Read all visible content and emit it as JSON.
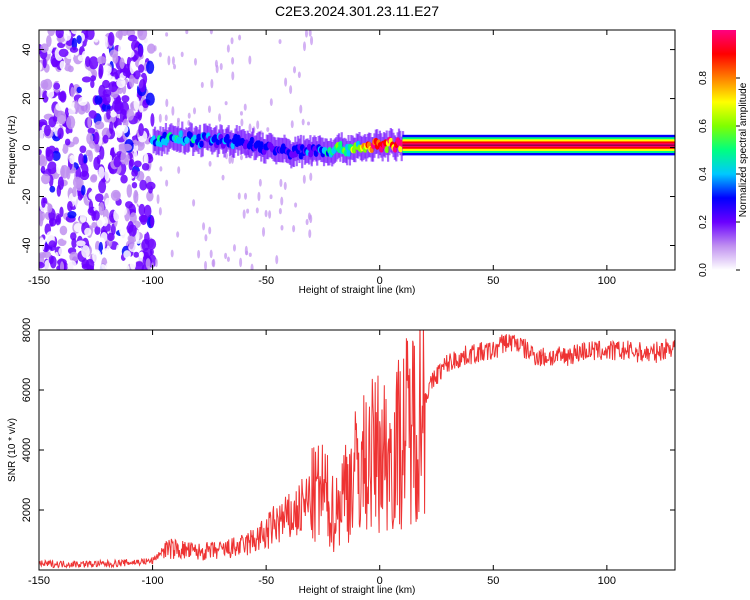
{
  "figure_title": "C2E3.2024.301.23.11.E27",
  "chart_data": [
    {
      "type": "heatmap",
      "xlabel": "Height of straight line (km)",
      "ylabel": "Frequency (Hz)",
      "xlim": [
        -150,
        130
      ],
      "ylim": [
        -50,
        48
      ],
      "xticks": [
        -150,
        -100,
        -50,
        0,
        50,
        100
      ],
      "yticks": [
        -40,
        -20,
        0,
        20,
        40
      ],
      "grid": false,
      "colorbar": {
        "label": "Normalized spectral amplitude",
        "range": [
          0,
          1
        ],
        "ticks": [
          0,
          0.2,
          0.4,
          0.6,
          0.8
        ],
        "tick_labels": [
          "0.0",
          "0.2",
          "0.4",
          "0.6",
          "0.8"
        ],
        "colors": [
          "#ffffff",
          "#c090f0",
          "#6a00ff",
          "#0000ff",
          "#00c8ff",
          "#00ff80",
          "#80ff00",
          "#ffff00",
          "#ff8000",
          "#ff0000",
          "#ff0080"
        ]
      },
      "ridge": {
        "x": [
          -100,
          -90,
          -80,
          -70,
          -60,
          -50,
          -40,
          -30,
          -20,
          -10,
          0,
          10,
          20,
          50,
          100,
          130
        ],
        "frequency": [
          3,
          4,
          3,
          3,
          2,
          0,
          -2,
          -1,
          -1,
          0,
          1,
          1,
          1,
          1,
          1,
          1
        ],
        "amplitude": [
          0.35,
          0.4,
          0.35,
          0.3,
          0.3,
          0.25,
          0.25,
          0.3,
          0.45,
          0.6,
          0.85,
          0.95,
          1,
          1,
          1,
          1
        ]
      },
      "noise_region": {
        "x": [
          -150,
          -100
        ],
        "frequency": [
          -50,
          48
        ],
        "amplitude": 0.2
      }
    },
    {
      "type": "line",
      "xlabel": "Height of straight line (km)",
      "ylabel": "SNR (10 * v/v)",
      "xlim": [
        -150,
        130
      ],
      "ylim": [
        0,
        8000
      ],
      "xticks": [
        -150,
        -100,
        -50,
        0,
        50,
        100
      ],
      "yticks": [
        2000,
        4000,
        6000,
        8000
      ],
      "grid": false,
      "series": [
        {
          "color": "#ee3333",
          "x": [
            -150,
            -140,
            -130,
            -120,
            -110,
            -100,
            -95,
            -90,
            -80,
            -70,
            -60,
            -55,
            -50,
            -45,
            -40,
            -35,
            -30,
            -25,
            -20,
            -15,
            -10,
            -5,
            0,
            5,
            10,
            15,
            20,
            25,
            30,
            40,
            50,
            55,
            60,
            65,
            70,
            80,
            90,
            100,
            110,
            120,
            130
          ],
          "values": [
            200,
            200,
            200,
            200,
            250,
            300,
            700,
            700,
            600,
            650,
            800,
            1000,
            1200,
            1600,
            1700,
            2000,
            2400,
            2600,
            1800,
            2800,
            3300,
            3700,
            4000,
            3800,
            4500,
            5000,
            5800,
            6500,
            6900,
            7200,
            7300,
            7600,
            7600,
            7300,
            7100,
            7100,
            7300,
            7300,
            7300,
            7200,
            7500
          ]
        }
      ]
    }
  ]
}
